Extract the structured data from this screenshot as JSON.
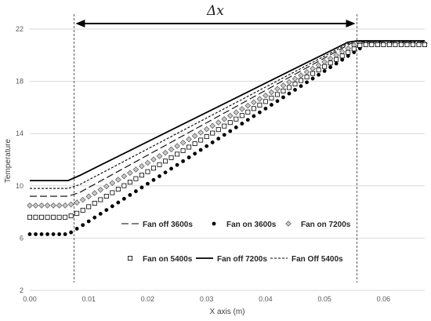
{
  "chart_data": {
    "type": "scatter",
    "xlabel": "X axis (m)",
    "ylabel": "Temperature",
    "xlim": [
      0,
      0.067
    ],
    "ylim": [
      2,
      22
    ],
    "xticks": [
      "0.00",
      "0.01",
      "0.02",
      "0.03",
      "0.04",
      "0.05",
      "0.06"
    ],
    "yticks": [
      "2",
      "6",
      "10",
      "14",
      "18",
      "22"
    ],
    "grid": "horizontal",
    "legend": "inside-bottom",
    "annotation": {
      "label": "Δx",
      "x_start": 0.0075,
      "x_end": 0.0555
    },
    "series": [
      {
        "name": "Fan off 3600s",
        "style": "dash-long",
        "color": "#000000",
        "points": [
          [
            0.0,
            9.2
          ],
          [
            0.0065,
            9.2
          ],
          [
            0.0085,
            9.5
          ],
          [
            0.0545,
            20.9
          ],
          [
            0.056,
            21.0
          ],
          [
            0.067,
            21.0
          ]
        ]
      },
      {
        "name": "Fan on 3600s",
        "style": "filled-circle",
        "color": "#000000",
        "points": [
          [
            0.0,
            6.3
          ],
          [
            0.0065,
            6.3
          ],
          [
            0.009,
            7.0
          ],
          [
            0.057,
            20.8
          ],
          [
            0.067,
            20.8
          ]
        ]
      },
      {
        "name": "Fan on 7200s",
        "style": "diamond",
        "color": "#000000",
        "points": [
          [
            0.0,
            8.5
          ],
          [
            0.0065,
            8.5
          ],
          [
            0.0085,
            8.8
          ],
          [
            0.0555,
            20.9
          ],
          [
            0.067,
            20.9
          ]
        ]
      },
      {
        "name": "Fan on 5400s",
        "style": "open-square",
        "color": "#000000",
        "points": [
          [
            0.0,
            7.6
          ],
          [
            0.0065,
            7.6
          ],
          [
            0.0085,
            8.0
          ],
          [
            0.0562,
            20.8
          ],
          [
            0.067,
            20.8
          ]
        ]
      },
      {
        "name": "Fan off 7200s",
        "style": "solid",
        "color": "#000000",
        "points": [
          [
            0.0,
            10.4
          ],
          [
            0.0065,
            10.4
          ],
          [
            0.0085,
            10.8
          ],
          [
            0.054,
            21.0
          ],
          [
            0.0555,
            21.1
          ],
          [
            0.067,
            21.1
          ]
        ]
      },
      {
        "name": "Fan Off 5400s",
        "style": "dash-short",
        "color": "#000000",
        "points": [
          [
            0.0,
            9.8
          ],
          [
            0.0065,
            9.8
          ],
          [
            0.0085,
            10.1
          ],
          [
            0.0545,
            21.0
          ],
          [
            0.0555,
            21.05
          ],
          [
            0.067,
            21.05
          ]
        ]
      }
    ]
  }
}
